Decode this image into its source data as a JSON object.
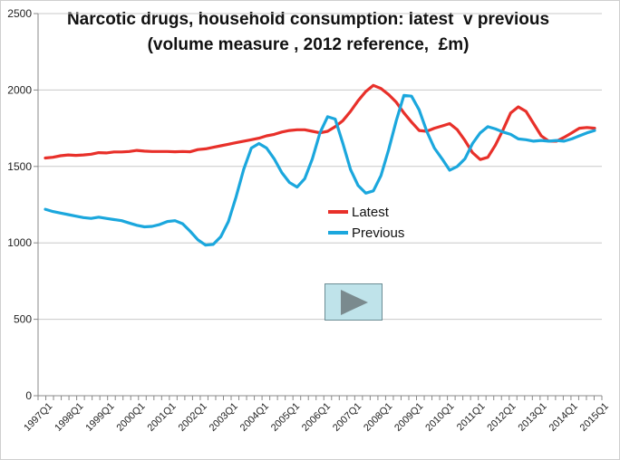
{
  "chart_data": {
    "type": "line",
    "title": [
      "Narcotic drugs, household consumption: latest  v previous",
      "(volume measure , 2012 reference,  £m)"
    ],
    "xlabel": "",
    "ylabel": "",
    "ylim": [
      0,
      2500
    ],
    "yticks": [
      0,
      500,
      1000,
      1500,
      2000,
      2500
    ],
    "grid": true,
    "legend_position": "center",
    "x_tick_labels": [
      "1997Q1",
      "1998Q1",
      "1999Q1",
      "2000Q1",
      "2001Q1",
      "2002Q1",
      "2003Q1",
      "2004Q1",
      "2005Q1",
      "2006Q1",
      "2007Q1",
      "2008Q1",
      "2009Q1",
      "2010Q1",
      "2011Q1",
      "2012Q1",
      "2013Q1",
      "2014Q1",
      "2015Q1"
    ],
    "series": [
      {
        "name": "Latest",
        "color": "#e8302a",
        "values": [
          1555,
          1560,
          1570,
          1575,
          1572,
          1575,
          1580,
          1590,
          1588,
          1595,
          1595,
          1598,
          1605,
          1600,
          1598,
          1598,
          1598,
          1596,
          1598,
          1596,
          1610,
          1615,
          1625,
          1635,
          1645,
          1655,
          1665,
          1675,
          1685,
          1700,
          1710,
          1725,
          1735,
          1740,
          1740,
          1730,
          1720,
          1730,
          1760,
          1800,
          1860,
          1930,
          1990,
          2030,
          2010,
          1970,
          1920,
          1850,
          1790,
          1735,
          1730,
          1750,
          1765,
          1780,
          1740,
          1670,
          1590,
          1545,
          1560,
          1640,
          1740,
          1850,
          1890,
          1860,
          1780,
          1700,
          1665,
          1665,
          1690,
          1720,
          1750,
          1755,
          1750
        ]
      },
      {
        "name": "Previous",
        "color": "#1ba7dd",
        "values": [
          1220,
          1205,
          1195,
          1185,
          1175,
          1165,
          1160,
          1168,
          1160,
          1152,
          1145,
          1130,
          1115,
          1105,
          1108,
          1120,
          1140,
          1145,
          1125,
          1075,
          1020,
          985,
          990,
          1040,
          1140,
          1300,
          1480,
          1620,
          1650,
          1620,
          1550,
          1460,
          1395,
          1365,
          1420,
          1550,
          1720,
          1825,
          1810,
          1650,
          1480,
          1375,
          1325,
          1340,
          1440,
          1610,
          1800,
          1965,
          1960,
          1870,
          1730,
          1620,
          1550,
          1475,
          1500,
          1550,
          1650,
          1720,
          1760,
          1745,
          1725,
          1710,
          1680,
          1675,
          1665,
          1670,
          1665,
          1670,
          1665,
          1680,
          1700,
          1720,
          1735
        ]
      }
    ]
  },
  "play_button": {
    "icon": "play-icon"
  }
}
